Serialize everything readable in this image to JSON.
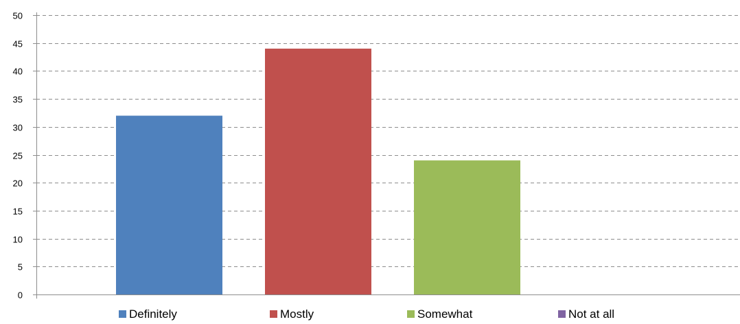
{
  "chart_data": {
    "type": "bar",
    "categories": [
      "Definitely",
      "Mostly",
      "Somewhat",
      "Not at all"
    ],
    "series": [
      {
        "values": [
          32,
          44,
          24,
          0
        ]
      }
    ],
    "colors": [
      "#4F81BD",
      "#C0504D",
      "#9BBB59",
      "#8064A2"
    ],
    "title": "",
    "xlabel": "",
    "ylabel": "",
    "ylim": [
      0,
      50
    ],
    "y_ticks": [
      "0",
      "5",
      "10",
      "15",
      "20",
      "25",
      "30",
      "35",
      "40",
      "45",
      "50"
    ],
    "grid": true,
    "grid_style": "dashed",
    "legend": {
      "position": "bottom",
      "entries": [
        "Definitely",
        "Mostly",
        "Somewhat",
        "Not at all"
      ]
    }
  }
}
